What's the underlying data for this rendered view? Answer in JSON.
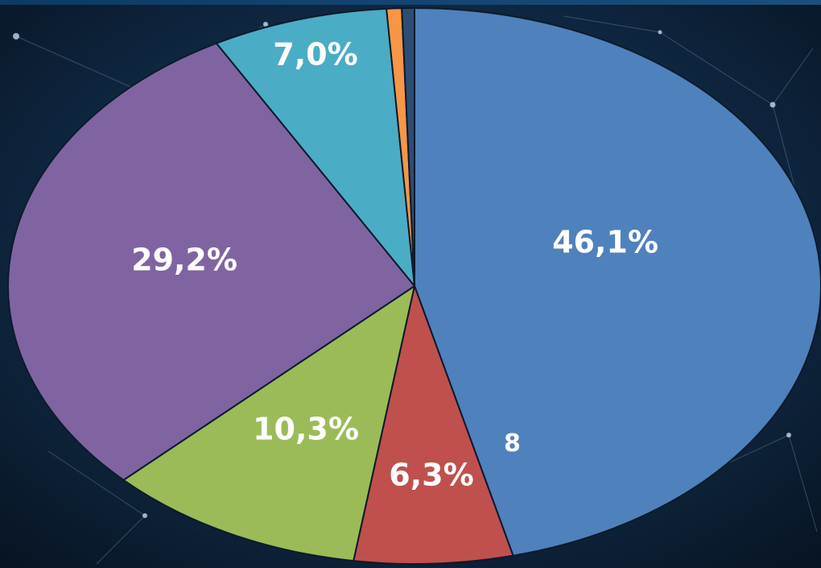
{
  "chart_data": {
    "type": "pie",
    "title": "",
    "legend": "none",
    "slices": [
      {
        "value": 46.1,
        "label": "46,1%",
        "color": "#4f81bd"
      },
      {
        "value": 6.3,
        "label": "6,3%",
        "color": "#c0504d"
      },
      {
        "value": 10.3,
        "label": "10,3%",
        "color": "#9bbb59"
      },
      {
        "value": 29.2,
        "label": "29,2%",
        "color": "#8064a2"
      },
      {
        "value": 7.0,
        "label": "7,0%",
        "color": "#4bacc6"
      },
      {
        "value": 0.6,
        "label": "",
        "color": "#f79646"
      },
      {
        "value": 0.5,
        "label": "",
        "color": "#2c4d75"
      }
    ]
  },
  "page_number": "8",
  "colors": {
    "background": "#0b1c2e",
    "label_text": "#ffffff",
    "slice_border": "#0d1a2a"
  }
}
